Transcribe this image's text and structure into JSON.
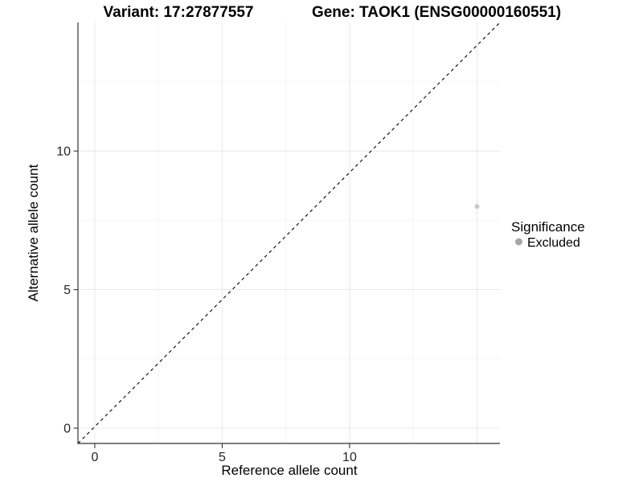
{
  "titles": {
    "variant": "Variant: 17:27877557",
    "gene": "Gene: TAOK1 (ENSG00000160551)"
  },
  "chart_data": {
    "type": "scatter",
    "title_left": "Variant: 17:27877557",
    "title_right": "Gene: TAOK1 (ENSG00000160551)",
    "xlabel": "Reference allele count",
    "ylabel": "Alternative allele count",
    "xlim": [
      -0.66,
      15.9
    ],
    "ylim": [
      -0.55,
      14.64
    ],
    "x_tick_values": [
      0,
      5,
      10
    ],
    "x_tick_labels": [
      "0",
      "5",
      "10"
    ],
    "y_tick_values": [
      0,
      5,
      10
    ],
    "y_tick_labels": [
      "0",
      "5",
      "10"
    ],
    "x_grid_major": [
      0,
      5,
      10,
      15
    ],
    "x_grid_minor": [
      2.5,
      7.5,
      12.5
    ],
    "y_grid_major": [
      0,
      5,
      10
    ],
    "y_grid_minor": [
      2.5,
      7.5,
      12.5
    ],
    "grid_on": true,
    "reference_line": {
      "description": "identity line y = x",
      "slope": 1,
      "intercept": 0,
      "style": "dashed",
      "color": "#000000"
    },
    "series": [
      {
        "name": "Excluded",
        "points": [
          {
            "x": 15,
            "y": 8
          }
        ],
        "color": "#c9c9c9"
      }
    ],
    "legend": {
      "position": "right",
      "title": "Significance",
      "items": [
        {
          "label": "Excluded",
          "color": "#a6a6a6"
        }
      ]
    }
  },
  "colors": {
    "background": "#ffffff",
    "axis_line": "#333333",
    "grid_major": "#e8e8e8",
    "grid_minor": "#f3f3f3",
    "tick": "#333333",
    "point": "#c9c9c9",
    "legend_key": "#a6a6a6",
    "dashed_line": "#000000"
  }
}
